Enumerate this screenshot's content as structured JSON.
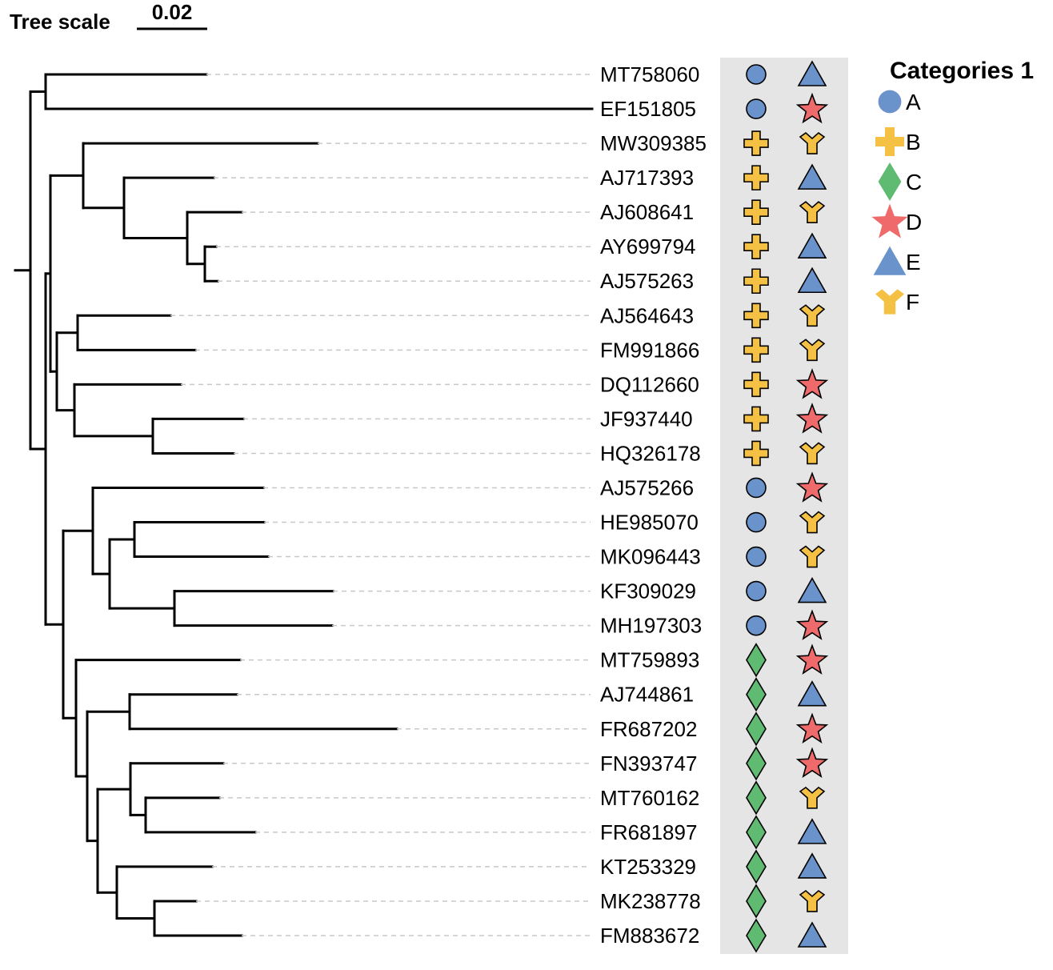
{
  "header": {
    "tree_scale_label": "Tree scale",
    "scale_value": "0.02"
  },
  "colors": {
    "A": "#6a93cb",
    "B": "#f5c144",
    "C": "#5fbb72",
    "D": "#ef6b6b",
    "E": "#6a93cb",
    "F": "#f5c144",
    "strip_bg": "#e5e5e5"
  },
  "legend": {
    "title": "Categories 1",
    "items": [
      {
        "label": "A",
        "shape": "circle"
      },
      {
        "label": "B",
        "shape": "plus"
      },
      {
        "label": "C",
        "shape": "diamond"
      },
      {
        "label": "D",
        "shape": "star"
      },
      {
        "label": "E",
        "shape": "triangle"
      },
      {
        "label": "F",
        "shape": "fork"
      }
    ]
  },
  "leaves": [
    {
      "name": "MT758060",
      "c1": "A",
      "c2": "E"
    },
    {
      "name": "EF151805",
      "c1": "A",
      "c2": "D"
    },
    {
      "name": "MW309385",
      "c1": "B",
      "c2": "F"
    },
    {
      "name": "AJ717393",
      "c1": "B",
      "c2": "E"
    },
    {
      "name": "AJ608641",
      "c1": "B",
      "c2": "F"
    },
    {
      "name": "AY699794",
      "c1": "B",
      "c2": "E"
    },
    {
      "name": "AJ575263",
      "c1": "B",
      "c2": "E"
    },
    {
      "name": "AJ564643",
      "c1": "B",
      "c2": "F"
    },
    {
      "name": "FM991866",
      "c1": "B",
      "c2": "F"
    },
    {
      "name": "DQ112660",
      "c1": "B",
      "c2": "D"
    },
    {
      "name": "JF937440",
      "c1": "B",
      "c2": "D"
    },
    {
      "name": "HQ326178",
      "c1": "B",
      "c2": "F"
    },
    {
      "name": "AJ575266",
      "c1": "A",
      "c2": "D"
    },
    {
      "name": "HE985070",
      "c1": "A",
      "c2": "F"
    },
    {
      "name": "MK096443",
      "c1": "A",
      "c2": "F"
    },
    {
      "name": "KF309029",
      "c1": "A",
      "c2": "E"
    },
    {
      "name": "MH197303",
      "c1": "A",
      "c2": "D"
    },
    {
      "name": "MT759893",
      "c1": "C",
      "c2": "D"
    },
    {
      "name": "AJ744861",
      "c1": "C",
      "c2": "E"
    },
    {
      "name": "FR687202",
      "c1": "C",
      "c2": "D"
    },
    {
      "name": "FN393747",
      "c1": "C",
      "c2": "D"
    },
    {
      "name": "MT760162",
      "c1": "C",
      "c2": "F"
    },
    {
      "name": "FR681897",
      "c1": "C",
      "c2": "E"
    },
    {
      "name": "KT253329",
      "c1": "C",
      "c2": "E"
    },
    {
      "name": "MK238778",
      "c1": "C",
      "c2": "F"
    },
    {
      "name": "FM883672",
      "c1": "C",
      "c2": "E"
    }
  ]
}
